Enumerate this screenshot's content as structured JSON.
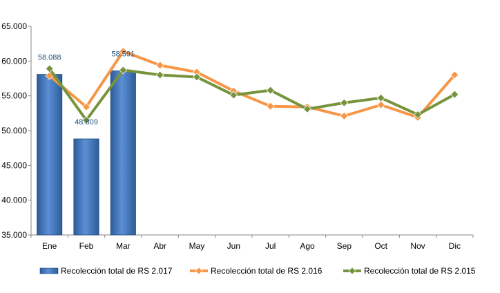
{
  "chart_data": {
    "type": "bar+line",
    "categories": [
      "Ene",
      "Feb",
      "Mar",
      "Abr",
      "May",
      "Jun",
      "Jul",
      "Ago",
      "Sep",
      "Oct",
      "Nov",
      "Dic"
    ],
    "ylim": [
      35000,
      65000
    ],
    "yticks": [
      35000,
      40000,
      45000,
      50000,
      55000,
      60000,
      65000
    ],
    "ytick_labels": [
      "35.000",
      "40.000",
      "45.000",
      "50.000",
      "55.000",
      "60.000",
      "65.000"
    ],
    "grid": false,
    "legend_position": "bottom",
    "series": [
      {
        "name": "Recolección total de RS 2.017",
        "kind": "bar",
        "color": "#4F81BD",
        "values": [
          58088,
          48809,
          58591,
          null,
          null,
          null,
          null,
          null,
          null,
          null,
          null,
          null
        ],
        "labels": [
          "58.088",
          "48.809",
          "58.591",
          "",
          "",
          "",
          "",
          "",
          "",
          "",
          "",
          ""
        ]
      },
      {
        "name": "Recolección total de RS 2.016",
        "kind": "line",
        "color": "#F79646",
        "values": [
          57900,
          53400,
          61400,
          59400,
          58400,
          55700,
          53500,
          53400,
          52100,
          53700,
          51900,
          58000
        ]
      },
      {
        "name": "Recolección total de RS 2.015",
        "kind": "line",
        "color": "#77933C",
        "values": [
          58900,
          51500,
          58700,
          58000,
          57700,
          55100,
          55800,
          53100,
          54000,
          54700,
          52300,
          55200
        ]
      }
    ]
  }
}
